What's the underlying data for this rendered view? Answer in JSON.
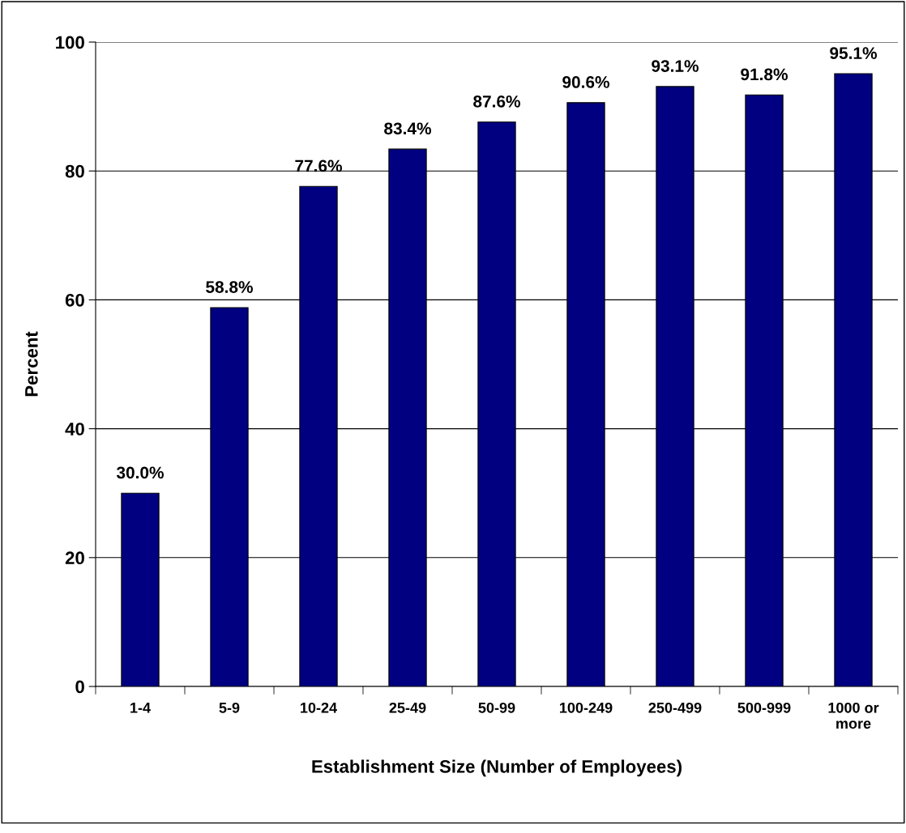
{
  "chart_data": {
    "type": "bar",
    "xlabel": "Establishment Size (Number of Employees)",
    "ylabel": "Percent",
    "categories": [
      "1-4",
      "5-9",
      "10-24",
      "25-49",
      "50-99",
      "100-249",
      "250-499",
      "500-999",
      "1000 or\nmore"
    ],
    "values": [
      30.0,
      58.8,
      77.6,
      83.4,
      87.6,
      90.6,
      93.1,
      91.8,
      95.1
    ],
    "value_labels": [
      "30.0%",
      "58.8%",
      "77.6%",
      "83.4%",
      "87.6%",
      "90.6%",
      "93.1%",
      "91.8%",
      "95.1%"
    ],
    "color": "#000080",
    "ylim": [
      0,
      100
    ],
    "yticks": [
      0,
      20,
      40,
      60,
      80,
      100
    ],
    "grid": "y",
    "legend": false
  }
}
